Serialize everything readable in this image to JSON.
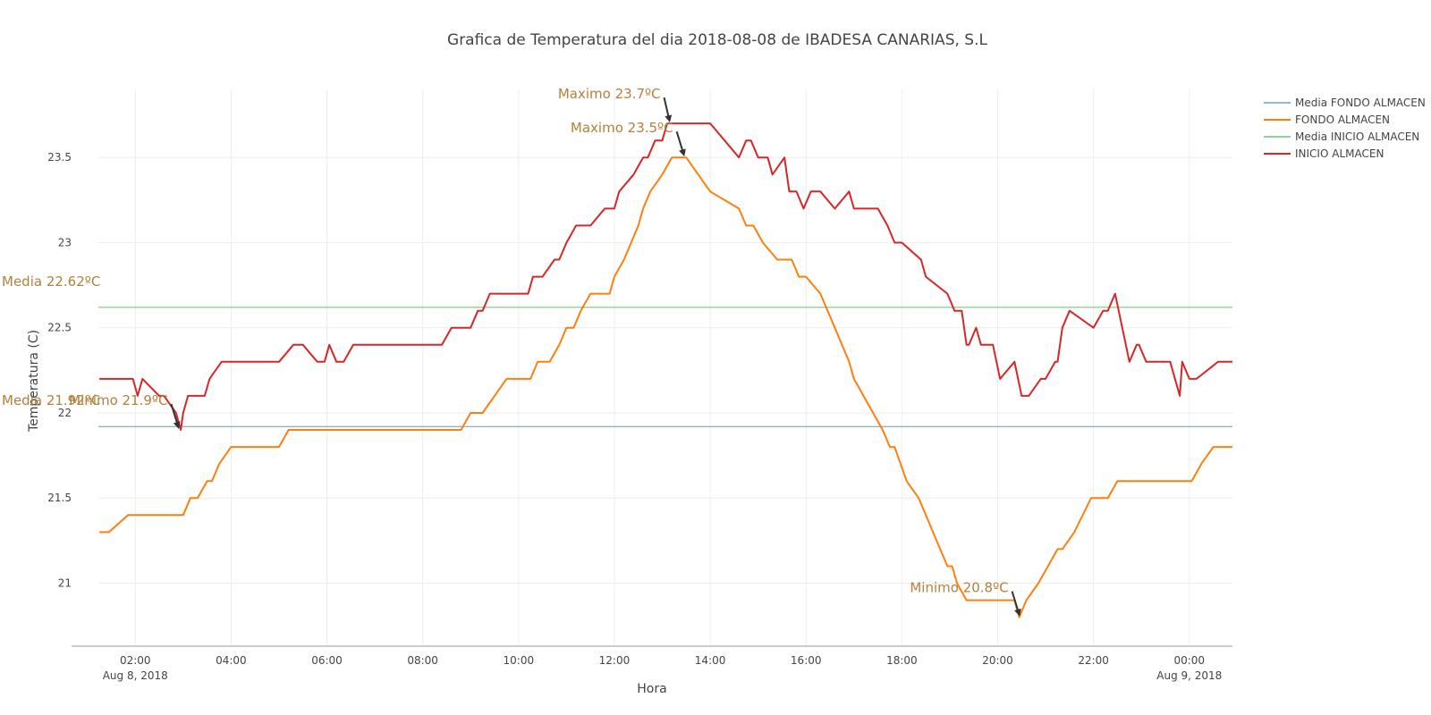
{
  "chart_data": {
    "type": "line",
    "title": "Grafica de Temperatura del dia 2018-08-08 de IBADESA CANARIAS, S.L",
    "xlabel": "Hora",
    "ylabel": "Temperatura (C)",
    "xlim": [
      1.23,
      24.9
    ],
    "ylim": [
      20.63,
      23.9
    ],
    "x_ticks": [
      {
        "value": 2,
        "label": "02:00",
        "sublabel": "Aug 8, 2018"
      },
      {
        "value": 4,
        "label": "04:00",
        "sublabel": ""
      },
      {
        "value": 6,
        "label": "06:00",
        "sublabel": ""
      },
      {
        "value": 8,
        "label": "08:00",
        "sublabel": ""
      },
      {
        "value": 10,
        "label": "10:00",
        "sublabel": ""
      },
      {
        "value": 12,
        "label": "12:00",
        "sublabel": ""
      },
      {
        "value": 14,
        "label": "14:00",
        "sublabel": ""
      },
      {
        "value": 16,
        "label": "16:00",
        "sublabel": ""
      },
      {
        "value": 18,
        "label": "18:00",
        "sublabel": ""
      },
      {
        "value": 20,
        "label": "20:00",
        "sublabel": ""
      },
      {
        "value": 22,
        "label": "22:00",
        "sublabel": ""
      },
      {
        "value": 24,
        "label": "00:00",
        "sublabel": "Aug 9, 2018"
      }
    ],
    "y_ticks": [
      {
        "value": 21,
        "label": "21"
      },
      {
        "value": 21.5,
        "label": "21.5"
      },
      {
        "value": 22,
        "label": "22"
      },
      {
        "value": 22.5,
        "label": "22.5"
      },
      {
        "value": 23,
        "label": "23"
      },
      {
        "value": 23.5,
        "label": "23.5"
      }
    ],
    "grid": true,
    "legend_position": "top-right",
    "series": [
      {
        "name": "Media FONDO ALMACEN",
        "kind": "mean",
        "color": "#1f77b4",
        "value": 21.92
      },
      {
        "name": "FONDO ALMACEN",
        "kind": "line",
        "color": "#ff7f0e",
        "x": [
          1.25,
          1.45,
          1.85,
          2.4,
          2.9,
          3.0,
          3.15,
          3.3,
          3.5,
          3.6,
          3.75,
          4.0,
          4.5,
          4.85,
          5.0,
          5.2,
          5.5,
          6.0,
          7.0,
          8.0,
          8.8,
          9.0,
          9.25,
          9.75,
          10.0,
          10.25,
          10.4,
          10.65,
          10.85,
          11.0,
          11.15,
          11.3,
          11.5,
          11.65,
          11.9,
          12.0,
          12.2,
          12.35,
          12.5,
          12.6,
          12.75,
          13.0,
          13.2,
          13.5,
          13.75,
          14.0,
          14.6,
          14.75,
          14.9,
          15.1,
          15.4,
          15.7,
          15.85,
          16.0,
          16.3,
          16.6,
          16.9,
          17.0,
          17.2,
          17.4,
          17.6,
          17.75,
          17.85,
          18.1,
          18.35,
          18.5,
          18.8,
          18.95,
          19.05,
          19.15,
          19.35,
          19.8,
          20.35,
          20.45,
          20.6,
          20.85,
          21.05,
          21.25,
          21.35,
          21.6,
          21.95,
          22.0,
          22.3,
          22.5,
          22.7,
          23.2,
          23.8,
          24.05,
          24.25,
          24.5,
          24.9
        ],
        "y": [
          21.3,
          21.3,
          21.4,
          21.4,
          21.4,
          21.4,
          21.5,
          21.5,
          21.6,
          21.6,
          21.7,
          21.8,
          21.8,
          21.8,
          21.8,
          21.9,
          21.9,
          21.9,
          21.9,
          21.9,
          21.9,
          22.0,
          22.0,
          22.2,
          22.2,
          22.2,
          22.3,
          22.3,
          22.4,
          22.5,
          22.5,
          22.6,
          22.7,
          22.7,
          22.7,
          22.8,
          22.9,
          23.0,
          23.1,
          23.2,
          23.3,
          23.4,
          23.5,
          23.5,
          23.4,
          23.3,
          23.2,
          23.1,
          23.1,
          23.0,
          22.9,
          22.9,
          22.8,
          22.8,
          22.7,
          22.5,
          22.3,
          22.2,
          22.1,
          22.0,
          21.9,
          21.8,
          21.8,
          21.6,
          21.5,
          21.4,
          21.2,
          21.1,
          21.1,
          21.0,
          20.9,
          20.9,
          20.9,
          20.8,
          20.9,
          21.0,
          21.1,
          21.2,
          21.2,
          21.3,
          21.5,
          21.5,
          21.5,
          21.6,
          21.6,
          21.6,
          21.6,
          21.6,
          21.7,
          21.8,
          21.8
        ]
      },
      {
        "name": "Media INICIO ALMACEN",
        "kind": "mean",
        "color": "#2ca02c",
        "value": 22.62
      },
      {
        "name": "INICIO ALMACEN",
        "kind": "line",
        "color": "#d62728",
        "x": [
          1.25,
          1.95,
          2.05,
          2.15,
          2.5,
          2.6,
          2.85,
          2.95,
          3.0,
          3.1,
          3.45,
          3.55,
          3.8,
          4.0,
          4.6,
          5.0,
          5.3,
          5.5,
          5.8,
          5.95,
          6.05,
          6.2,
          6.35,
          6.55,
          6.7,
          7.3,
          8.0,
          8.4,
          8.6,
          8.75,
          9.0,
          9.15,
          9.25,
          9.4,
          9.7,
          10.0,
          10.2,
          10.3,
          10.4,
          10.5,
          10.75,
          10.85,
          11.0,
          11.2,
          11.5,
          11.8,
          11.9,
          12.0,
          12.1,
          12.4,
          12.6,
          12.7,
          12.85,
          13.0,
          13.1,
          13.25,
          13.6,
          14.0,
          14.6,
          14.75,
          14.85,
          15.0,
          15.1,
          15.2,
          15.3,
          15.55,
          15.65,
          15.8,
          15.95,
          16.1,
          16.3,
          16.6,
          16.9,
          17.0,
          17.3,
          17.5,
          17.7,
          17.85,
          18.0,
          18.4,
          18.5,
          18.95,
          19.1,
          19.25,
          19.35,
          19.4,
          19.55,
          19.65,
          19.8,
          19.9,
          20.05,
          20.35,
          20.5,
          20.65,
          20.9,
          21.0,
          21.2,
          21.25,
          21.35,
          21.5,
          22.0,
          22.2,
          22.3,
          22.45,
          22.75,
          22.9,
          22.95,
          23.1,
          23.3,
          23.6,
          23.8,
          23.85,
          24.0,
          24.05,
          24.15,
          24.6,
          24.9
        ],
        "y": [
          22.2,
          22.2,
          22.1,
          22.2,
          22.1,
          22.1,
          22.0,
          21.9,
          22.0,
          22.1,
          22.1,
          22.2,
          22.3,
          22.3,
          22.3,
          22.3,
          22.4,
          22.4,
          22.3,
          22.3,
          22.4,
          22.3,
          22.3,
          22.4,
          22.4,
          22.4,
          22.4,
          22.4,
          22.5,
          22.5,
          22.5,
          22.6,
          22.6,
          22.7,
          22.7,
          22.7,
          22.7,
          22.8,
          22.8,
          22.8,
          22.9,
          22.9,
          23.0,
          23.1,
          23.1,
          23.2,
          23.2,
          23.2,
          23.3,
          23.4,
          23.5,
          23.5,
          23.6,
          23.6,
          23.7,
          23.7,
          23.7,
          23.7,
          23.5,
          23.6,
          23.6,
          23.5,
          23.5,
          23.5,
          23.4,
          23.5,
          23.3,
          23.3,
          23.2,
          23.3,
          23.3,
          23.2,
          23.3,
          23.2,
          23.2,
          23.2,
          23.1,
          23.0,
          23.0,
          22.9,
          22.8,
          22.7,
          22.6,
          22.6,
          22.4,
          22.4,
          22.5,
          22.4,
          22.4,
          22.4,
          22.2,
          22.3,
          22.1,
          22.1,
          22.2,
          22.2,
          22.3,
          22.3,
          22.5,
          22.6,
          22.5,
          22.6,
          22.6,
          22.7,
          22.3,
          22.4,
          22.4,
          22.3,
          22.3,
          22.3,
          22.1,
          22.3,
          22.2,
          22.2,
          22.2,
          22.3,
          22.3
        ]
      }
    ],
    "annotations": [
      {
        "text": "Maximo 23.7ºC",
        "x": 13.15,
        "y": 23.7
      },
      {
        "text": "Maximo 23.5ºC",
        "x": 13.45,
        "y": 23.5
      },
      {
        "text": "Minimo 21.9ºC",
        "x": 2.9,
        "y": 21.9
      },
      {
        "text": "Minimo 20.8ºC",
        "x": 20.45,
        "y": 20.8
      },
      {
        "text": "Media 22.62ºC",
        "x": 1.23,
        "y": 22.62
      },
      {
        "text": "Media 21.92ºC",
        "x": 1.23,
        "y": 21.92
      }
    ]
  }
}
